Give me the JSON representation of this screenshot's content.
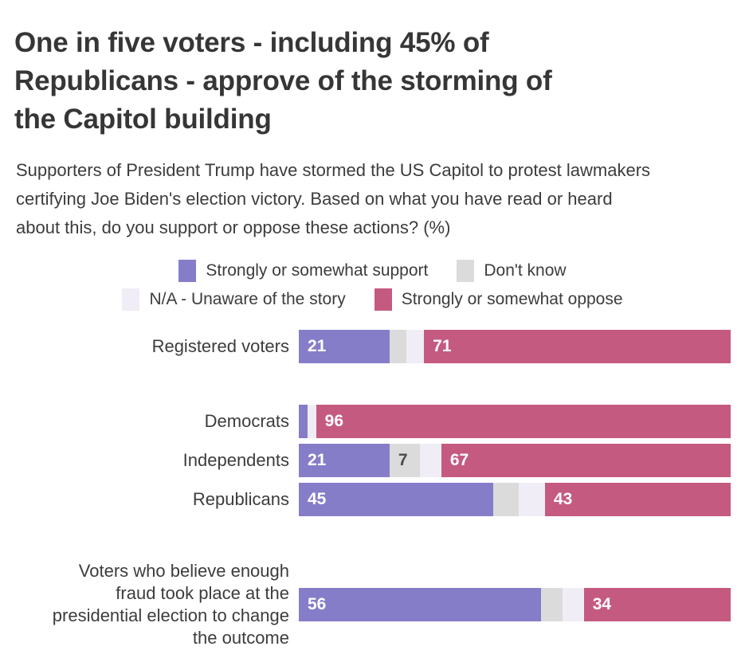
{
  "header": {
    "title_lines": [
      "One in five voters - including 45% of",
      "Republicans - approve of the storming of",
      "the Capitol building"
    ],
    "subtitle_lines": [
      "Supporters of President Trump have stormed the US Capitol to protest lawmakers",
      "certifying Joe Biden's election victory. Based on what you have read or heard",
      "about this, do you support or oppose these actions? (%)"
    ]
  },
  "colors": {
    "support": "#867DC9",
    "dont_know": "#DBDBDB",
    "unaware": "#F0EDF6",
    "oppose": "#C55A80",
    "value_light": "#FFFFFF",
    "value_dark": "#4B4B4B",
    "text": "#3C3C3C",
    "title": "#363636"
  },
  "legend": {
    "rows": [
      [
        {
          "key": "support",
          "label": "Strongly or somewhat support"
        },
        {
          "key": "dont_know",
          "label": "Don't know"
        }
      ],
      [
        {
          "key": "unaware",
          "label": "N/A - Unaware of the story"
        },
        {
          "key": "oppose",
          "label": "Strongly or somewhat oppose"
        }
      ]
    ]
  },
  "chart_data": {
    "type": "bar",
    "orientation": "horizontal",
    "stacked": true,
    "unit": "%",
    "xlim": [
      0,
      100
    ],
    "grid": false,
    "legend_position": "top-center",
    "series_order": [
      "support",
      "dont_know",
      "unaware",
      "oppose"
    ],
    "series_names": {
      "support": "Strongly or somewhat support",
      "dont_know": "Don't know",
      "unaware": "N/A - Unaware of the story",
      "oppose": "Strongly or somewhat oppose"
    },
    "rows": [
      {
        "group": "overall",
        "label_lines": [
          "Registered voters"
        ],
        "values": {
          "support": 21,
          "dont_know": 4,
          "unaware": 4,
          "oppose": 71
        },
        "value_labels": {
          "support": "21",
          "oppose": "71"
        }
      },
      {
        "group": "party",
        "label_lines": [
          "Democrats"
        ],
        "values": {
          "support": 2,
          "dont_know": 0,
          "unaware": 2,
          "oppose": 96
        },
        "value_labels": {
          "oppose": "96"
        }
      },
      {
        "group": "party",
        "label_lines": [
          "Independents"
        ],
        "values": {
          "support": 21,
          "dont_know": 7,
          "unaware": 5,
          "oppose": 67
        },
        "value_labels": {
          "support": "21",
          "dont_know": "7",
          "oppose": "67"
        }
      },
      {
        "group": "party",
        "label_lines": [
          "Republicans"
        ],
        "values": {
          "support": 45,
          "dont_know": 6,
          "unaware": 6,
          "oppose": 43
        },
        "value_labels": {
          "support": "45",
          "oppose": "43"
        }
      },
      {
        "group": "fraud",
        "label_lines": [
          "Voters who believe enough",
          "fraud took place at the",
          "presidential election to change",
          "the outcome"
        ],
        "values": {
          "support": 56,
          "dont_know": 5,
          "unaware": 5,
          "oppose": 34
        },
        "value_labels": {
          "support": "56",
          "oppose": "34"
        }
      }
    ]
  }
}
